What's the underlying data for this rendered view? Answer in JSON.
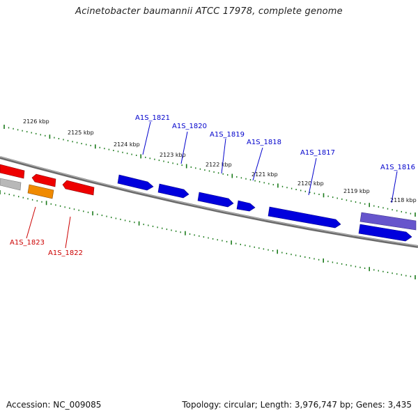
{
  "title": "Acinetobacter baumannii ATCC 17978, complete genome",
  "accession_label": "Accession: NC_009085",
  "summary_label": "Topology: circular; Length: 3,976,747 bp; Genes: 3,435",
  "colors": {
    "backbone": "#808080",
    "tick": "#1a7a1a",
    "forward_gene": "#0000dd",
    "forward_label": "#0000cc",
    "reverse_gene": "#ee0000",
    "reverse_label": "#cc0000",
    "orange_gene": "#f08a00",
    "grey_gene": "#b8b8b8",
    "purple_gene": "#6655cc"
  },
  "kbp_labels": [
    "2126 kbp",
    "2125 kbp",
    "2124 kbp",
    "2123 kbp",
    "2122 kbp",
    "2121 kbp",
    "2120 kbp",
    "2119 kbp",
    "2118 kbp"
  ],
  "genes": [
    {
      "id": "A1S_1821",
      "strand": "forward",
      "color": "forward_gene"
    },
    {
      "id": "A1S_1820",
      "strand": "forward",
      "color": "forward_gene"
    },
    {
      "id": "A1S_1819",
      "strand": "forward",
      "color": "forward_gene"
    },
    {
      "id": "A1S_1818",
      "strand": "forward",
      "color": "forward_gene"
    },
    {
      "id": "A1S_1817",
      "strand": "forward",
      "color": "forward_gene"
    },
    {
      "id": "A1S_1816",
      "strand": "forward",
      "color": "forward_gene"
    },
    {
      "id": "A1S_1823",
      "strand": "reverse",
      "color": "reverse_gene"
    },
    {
      "id": "A1S_1822",
      "strand": "reverse",
      "color": "reverse_gene"
    }
  ]
}
